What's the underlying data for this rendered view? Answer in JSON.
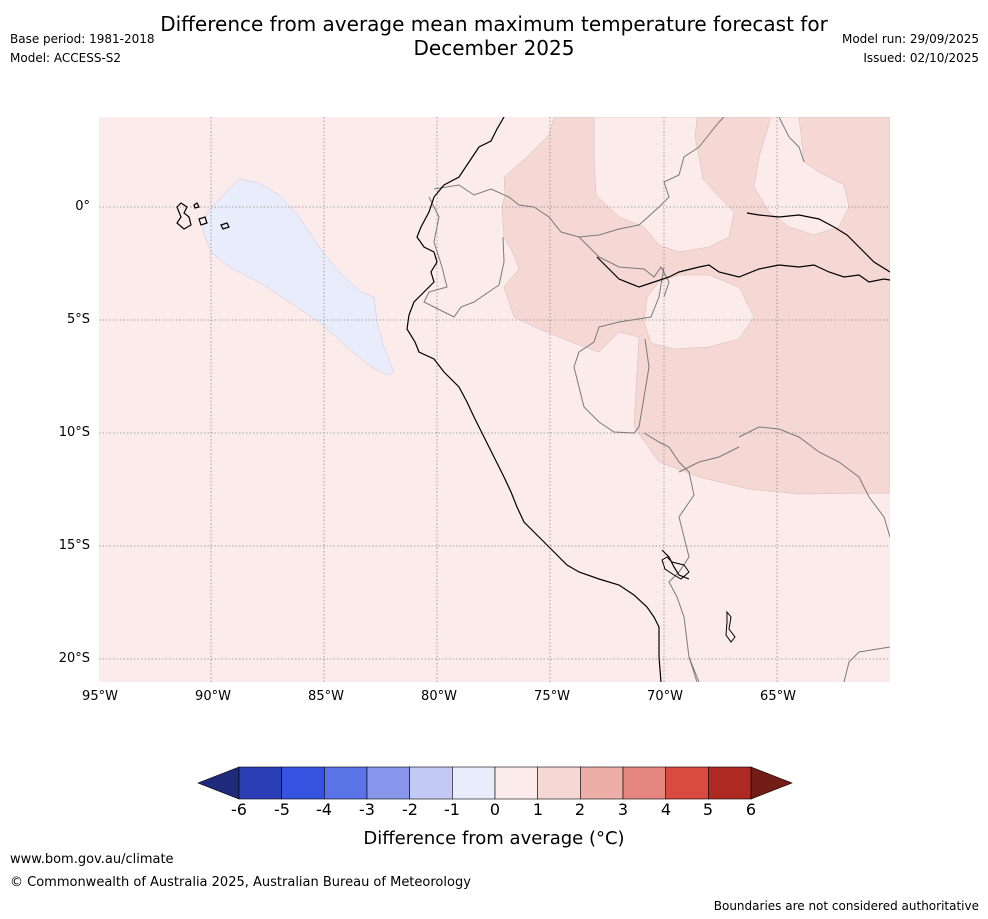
{
  "header": {
    "title_line1": "Difference from average mean maximum temperature forecast for",
    "title_line2": "December 2025",
    "base_period": "Base period: 1981-2018",
    "model": "Model: ACCESS-S2",
    "model_run": "Model run: 29/09/2025",
    "issued": "Issued: 02/10/2025"
  },
  "map": {
    "lat_labels": [
      "0°",
      "5°S",
      "10°S",
      "15°S",
      "20°S"
    ],
    "lon_labels": [
      "95°W",
      "90°W",
      "85°W",
      "80°W",
      "75°W",
      "70°W",
      "65°W"
    ],
    "colors": {
      "background_0_1": "#fbeceb",
      "band_1_2": "#f5d7d4",
      "band_neg1_0": "#e9ecfb",
      "coast": "#000000",
      "border": "#7a7a7a"
    }
  },
  "colorbar": {
    "tick_labels": [
      "-6",
      "-5",
      "-4",
      "-3",
      "-2",
      "-1",
      "0",
      "1",
      "2",
      "3",
      "4",
      "5",
      "6"
    ],
    "colors": [
      "#1f2a7a",
      "#2a3fb6",
      "#3453e0",
      "#5a73e6",
      "#8897ec",
      "#c3c9f5",
      "#e9ecfb",
      "#fbeceb",
      "#f5d7d4",
      "#eeaea8",
      "#e6877f",
      "#d94a40",
      "#ae2a22",
      "#721d15"
    ],
    "label": "Difference from average (°C)"
  },
  "footer": {
    "url": "www.bom.gov.au/climate",
    "copyright": "© Commonwealth of Australia 2025, Australian Bureau of Meteorology",
    "disclaimer": "Boundaries are not considered authoritative"
  }
}
